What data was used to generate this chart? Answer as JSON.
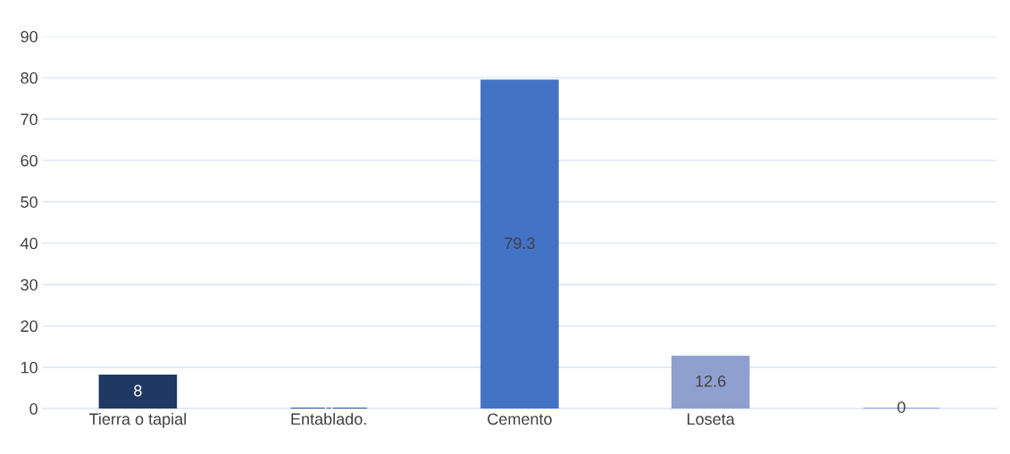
{
  "chart_data": {
    "type": "bar",
    "categories": [
      "Tierra o tapial",
      "Entablado.",
      "Cemento",
      "Loseta",
      null
    ],
    "values": [
      8,
      0,
      79.3,
      12.6,
      0
    ],
    "colors": [
      "#203864",
      "#2f5597",
      "#4472c4",
      "#8f9fcf",
      "#8f9fcf"
    ],
    "ylim": [
      0,
      90
    ],
    "yticks": [
      0,
      10,
      20,
      30,
      40,
      50,
      60,
      70,
      80,
      90
    ],
    "grid": "y",
    "data_labels": true,
    "legend": false
  }
}
